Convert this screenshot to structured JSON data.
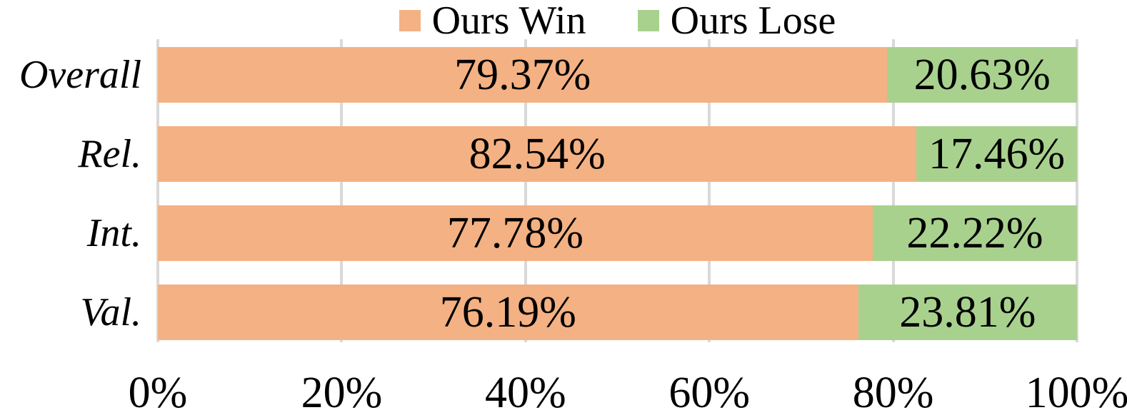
{
  "legend": {
    "items": [
      {
        "label": "Ours Win",
        "color": "#F4B183"
      },
      {
        "label": "Ours Lose",
        "color": "#A9D18E"
      }
    ],
    "position": "top"
  },
  "chart_data": {
    "type": "bar",
    "orientation": "horizontal-stacked",
    "title": "",
    "xlabel": "",
    "ylabel": "",
    "categories": [
      "Overall",
      "Rel.",
      "Int.",
      "Val."
    ],
    "series": [
      {
        "name": "Ours Win",
        "color": "#F4B183",
        "values": [
          79.37,
          82.54,
          77.78,
          76.19
        ]
      },
      {
        "name": "Ours Lose",
        "color": "#A9D18E",
        "values": [
          20.63,
          17.46,
          22.22,
          23.81
        ]
      }
    ],
    "value_label_format": "percent-2dp",
    "x_ticks": [
      "0%",
      "20%",
      "40%",
      "60%",
      "80%",
      "100%"
    ],
    "x_tick_values": [
      0,
      20,
      40,
      60,
      80,
      100
    ],
    "xlim": [
      0,
      100
    ],
    "grid": true,
    "gridline_color": "#D9D9D9",
    "legend_position": "top",
    "text_color": "#000000"
  }
}
